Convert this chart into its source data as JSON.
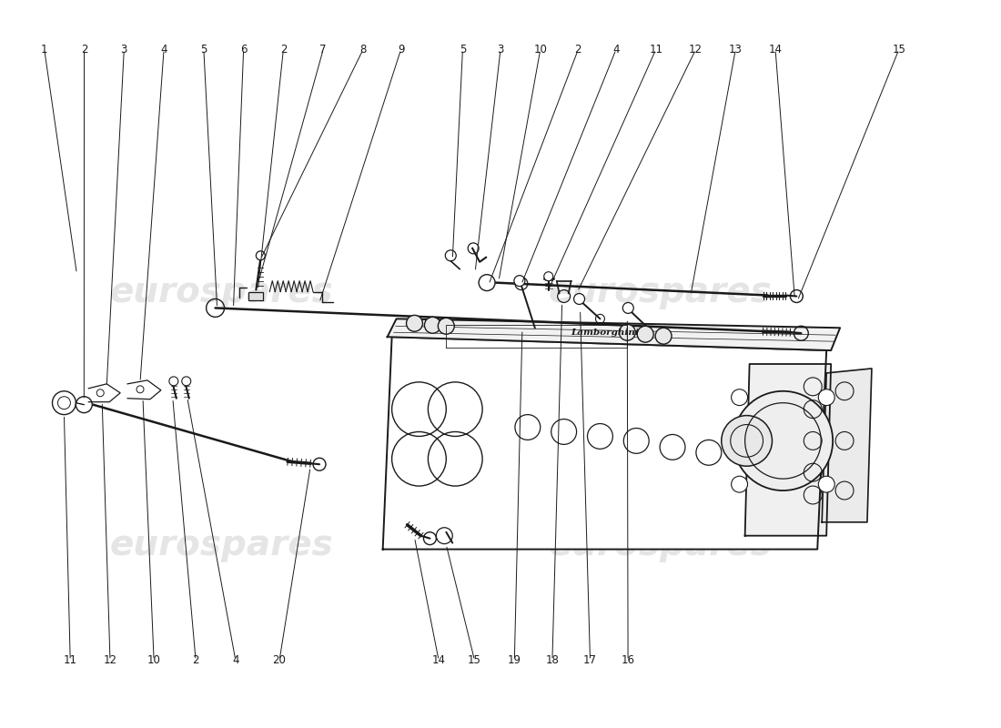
{
  "bg_color": "#ffffff",
  "line_color": "#1a1a1a",
  "watermark_color": "#cccccc",
  "watermark_text": "eurospares",
  "top_labels_left": [
    [
      "1",
      0.042
    ],
    [
      "2",
      0.082
    ],
    [
      "3",
      0.122
    ],
    [
      "4",
      0.162
    ],
    [
      "5",
      0.202
    ],
    [
      "6",
      0.242
    ],
    [
      "2",
      0.282
    ],
    [
      "7",
      0.322
    ],
    [
      "8",
      0.362
    ],
    [
      "9",
      0.4
    ]
  ],
  "top_labels_right": [
    [
      "5",
      0.462
    ],
    [
      "3",
      0.5
    ],
    [
      "10",
      0.54
    ],
    [
      "2",
      0.578
    ],
    [
      "4",
      0.616
    ],
    [
      "11",
      0.656
    ],
    [
      "12",
      0.696
    ],
    [
      "13",
      0.736
    ],
    [
      "14",
      0.776
    ],
    [
      "15",
      0.9
    ]
  ],
  "bottom_labels_left": [
    [
      "11",
      0.068
    ],
    [
      "12",
      0.108
    ],
    [
      "10",
      0.152
    ],
    [
      "2",
      0.194
    ],
    [
      "4",
      0.234
    ],
    [
      "20",
      0.278
    ]
  ],
  "bottom_labels_right": [
    [
      "14",
      0.438
    ],
    [
      "15",
      0.474
    ],
    [
      "19",
      0.514
    ],
    [
      "18",
      0.552
    ],
    [
      "17",
      0.59
    ],
    [
      "16",
      0.628
    ]
  ]
}
